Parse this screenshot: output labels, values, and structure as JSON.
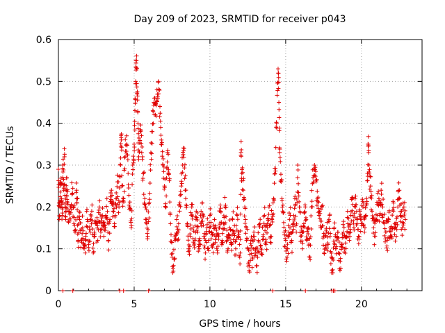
{
  "chart_data": {
    "type": "scatter",
    "title": "Day 209 of 2023, SRMTID for receiver p043",
    "xlabel": "GPS time / hours",
    "ylabel": "SRMTID / TECUs",
    "xlim": [
      0,
      24
    ],
    "ylim": [
      0,
      0.6
    ],
    "x_ticks": [
      0,
      5,
      10,
      15,
      20
    ],
    "x_tick_labels": [
      "0",
      "5",
      "10",
      "15",
      "20"
    ],
    "y_ticks": [
      0,
      0.1,
      0.2,
      0.3,
      0.4,
      0.5,
      0.6
    ],
    "y_tick_labels": [
      "0",
      "0.1",
      "0.2",
      "0.3",
      "0.4",
      "0.5",
      "0.6"
    ],
    "grid": true,
    "marker": "plus",
    "color": "#e00000",
    "series": [
      {
        "name": "SRMTID",
        "points": [
          [
            0.0,
            0.29
          ],
          [
            0.05,
            0.17
          ],
          [
            0.1,
            0.2
          ],
          [
            0.15,
            0.26
          ],
          [
            0.2,
            0.22
          ],
          [
            0.25,
            0.18
          ],
          [
            0.3,
            0.3
          ],
          [
            0.35,
            0.24
          ],
          [
            0.4,
            0.32
          ],
          [
            0.45,
            0.2
          ],
          [
            0.5,
            0.19
          ],
          [
            0.55,
            0.27
          ],
          [
            0.6,
            0.21
          ],
          [
            0.7,
            0.19
          ],
          [
            0.8,
            0.2
          ],
          [
            0.9,
            0.23
          ],
          [
            1.0,
            0.2
          ],
          [
            1.1,
            0.14
          ],
          [
            1.2,
            0.24
          ],
          [
            1.25,
            0.22
          ],
          [
            1.3,
            0.12
          ],
          [
            1.4,
            0.17
          ],
          [
            1.5,
            0.12
          ],
          [
            1.6,
            0.15
          ],
          [
            1.7,
            0.1
          ],
          [
            1.8,
            0.13
          ],
          [
            1.9,
            0.17
          ],
          [
            2.0,
            0.11
          ],
          [
            2.1,
            0.14
          ],
          [
            2.2,
            0.19
          ],
          [
            2.3,
            0.09
          ],
          [
            2.4,
            0.13
          ],
          [
            2.5,
            0.16
          ],
          [
            2.6,
            0.12
          ],
          [
            2.7,
            0.2
          ],
          [
            2.8,
            0.14
          ],
          [
            2.9,
            0.18
          ],
          [
            3.0,
            0.13
          ],
          [
            3.1,
            0.15
          ],
          [
            3.2,
            0.22
          ],
          [
            3.3,
            0.12
          ],
          [
            3.4,
            0.17
          ],
          [
            3.5,
            0.24
          ],
          [
            3.6,
            0.19
          ],
          [
            3.7,
            0.16
          ],
          [
            3.8,
            0.22
          ],
          [
            3.9,
            0.26
          ],
          [
            4.0,
            0.2
          ],
          [
            4.1,
            0.3
          ],
          [
            4.15,
            0.36
          ],
          [
            4.2,
            0.25
          ],
          [
            4.3,
            0.22
          ],
          [
            4.4,
            0.32
          ],
          [
            4.5,
            0.37
          ],
          [
            4.6,
            0.28
          ],
          [
            4.7,
            0.2
          ],
          [
            4.8,
            0.15
          ],
          [
            4.9,
            0.3
          ],
          [
            5.0,
            0.35
          ],
          [
            5.05,
            0.43
          ],
          [
            5.1,
            0.5
          ],
          [
            5.15,
            0.55
          ],
          [
            5.2,
            0.47
          ],
          [
            5.25,
            0.4
          ],
          [
            5.3,
            0.32
          ],
          [
            5.4,
            0.38
          ],
          [
            5.5,
            0.33
          ],
          [
            5.6,
            0.28
          ],
          [
            5.7,
            0.22
          ],
          [
            5.8,
            0.17
          ],
          [
            5.9,
            0.13
          ],
          [
            6.0,
            0.21
          ],
          [
            6.1,
            0.33
          ],
          [
            6.2,
            0.38
          ],
          [
            6.3,
            0.45
          ],
          [
            6.4,
            0.42
          ],
          [
            6.5,
            0.48
          ],
          [
            6.6,
            0.5
          ],
          [
            6.7,
            0.44
          ],
          [
            6.8,
            0.36
          ],
          [
            6.9,
            0.3
          ],
          [
            7.0,
            0.25
          ],
          [
            7.1,
            0.2
          ],
          [
            7.2,
            0.33
          ],
          [
            7.3,
            0.28
          ],
          [
            7.4,
            0.16
          ],
          [
            7.5,
            0.08
          ],
          [
            7.6,
            0.06
          ],
          [
            7.7,
            0.12
          ],
          [
            7.8,
            0.17
          ],
          [
            7.9,
            0.14
          ],
          [
            8.0,
            0.19
          ],
          [
            8.1,
            0.25
          ],
          [
            8.2,
            0.3
          ],
          [
            8.3,
            0.34
          ],
          [
            8.4,
            0.22
          ],
          [
            8.5,
            0.16
          ],
          [
            8.6,
            0.1
          ],
          [
            8.7,
            0.13
          ],
          [
            8.8,
            0.2
          ],
          [
            8.9,
            0.15
          ],
          [
            9.0,
            0.12
          ],
          [
            9.1,
            0.19
          ],
          [
            9.2,
            0.14
          ],
          [
            9.3,
            0.1
          ],
          [
            9.4,
            0.16
          ],
          [
            9.5,
            0.21
          ],
          [
            9.6,
            0.13
          ],
          [
            9.7,
            0.09
          ],
          [
            9.8,
            0.15
          ],
          [
            9.9,
            0.12
          ],
          [
            10.0,
            0.18
          ],
          [
            10.1,
            0.14
          ],
          [
            10.2,
            0.11
          ],
          [
            10.3,
            0.17
          ],
          [
            10.4,
            0.13
          ],
          [
            10.5,
            0.09
          ],
          [
            10.6,
            0.15
          ],
          [
            10.7,
            0.19
          ],
          [
            10.8,
            0.12
          ],
          [
            10.9,
            0.16
          ],
          [
            11.0,
            0.2
          ],
          [
            11.1,
            0.13
          ],
          [
            11.2,
            0.1
          ],
          [
            11.3,
            0.15
          ],
          [
            11.4,
            0.11
          ],
          [
            11.5,
            0.17
          ],
          [
            11.6,
            0.14
          ],
          [
            11.7,
            0.1
          ],
          [
            11.8,
            0.18
          ],
          [
            11.9,
            0.13
          ],
          [
            12.0,
            0.09
          ],
          [
            12.05,
            0.33
          ],
          [
            12.1,
            0.28
          ],
          [
            12.2,
            0.24
          ],
          [
            12.3,
            0.2
          ],
          [
            12.4,
            0.15
          ],
          [
            12.5,
            0.1
          ],
          [
            12.6,
            0.06
          ],
          [
            12.7,
            0.12
          ],
          [
            12.8,
            0.08
          ],
          [
            12.9,
            0.14
          ],
          [
            13.0,
            0.1
          ],
          [
            13.1,
            0.06
          ],
          [
            13.2,
            0.12
          ],
          [
            13.3,
            0.16
          ],
          [
            13.4,
            0.09
          ],
          [
            13.5,
            0.13
          ],
          [
            13.6,
            0.18
          ],
          [
            13.7,
            0.11
          ],
          [
            13.8,
            0.15
          ],
          [
            13.9,
            0.2
          ],
          [
            14.0,
            0.13
          ],
          [
            14.1,
            0.17
          ],
          [
            14.2,
            0.22
          ],
          [
            14.3,
            0.28
          ],
          [
            14.4,
            0.4
          ],
          [
            14.5,
            0.53
          ],
          [
            14.55,
            0.45
          ],
          [
            14.6,
            0.33
          ],
          [
            14.7,
            0.26
          ],
          [
            14.8,
            0.19
          ],
          [
            14.9,
            0.14
          ],
          [
            15.0,
            0.12
          ],
          [
            15.1,
            0.08
          ],
          [
            15.2,
            0.14
          ],
          [
            15.3,
            0.18
          ],
          [
            15.4,
            0.12
          ],
          [
            15.5,
            0.16
          ],
          [
            15.6,
            0.22
          ],
          [
            15.7,
            0.14
          ],
          [
            15.8,
            0.3
          ],
          [
            15.9,
            0.2
          ],
          [
            16.0,
            0.13
          ],
          [
            16.1,
            0.1
          ],
          [
            16.2,
            0.16
          ],
          [
            16.3,
            0.2
          ],
          [
            16.4,
            0.12
          ],
          [
            16.5,
            0.15
          ],
          [
            16.6,
            0.08
          ],
          [
            16.7,
            0.2
          ],
          [
            16.8,
            0.27
          ],
          [
            16.9,
            0.3
          ],
          [
            17.0,
            0.26
          ],
          [
            17.1,
            0.22
          ],
          [
            17.2,
            0.18
          ],
          [
            17.3,
            0.15
          ],
          [
            17.4,
            0.2
          ],
          [
            17.5,
            0.13
          ],
          [
            17.6,
            0.1
          ],
          [
            17.7,
            0.14
          ],
          [
            17.8,
            0.11
          ],
          [
            17.9,
            0.18
          ],
          [
            18.0,
            0.08
          ],
          [
            18.1,
            0.05
          ],
          [
            18.2,
            0.15
          ],
          [
            18.3,
            0.1
          ],
          [
            18.4,
            0.13
          ],
          [
            18.5,
            0.09
          ],
          [
            18.6,
            0.07
          ],
          [
            18.7,
            0.11
          ],
          [
            18.8,
            0.14
          ],
          [
            18.9,
            0.1
          ],
          [
            19.0,
            0.13
          ],
          [
            19.1,
            0.16
          ],
          [
            19.2,
            0.12
          ],
          [
            19.3,
            0.18
          ],
          [
            19.4,
            0.22
          ],
          [
            19.5,
            0.15
          ],
          [
            19.6,
            0.2
          ],
          [
            19.7,
            0.17
          ],
          [
            19.8,
            0.13
          ],
          [
            19.9,
            0.19
          ],
          [
            20.0,
            0.16
          ],
          [
            20.1,
            0.2
          ],
          [
            20.2,
            0.14
          ],
          [
            20.3,
            0.18
          ],
          [
            20.4,
            0.28
          ],
          [
            20.45,
            0.35
          ],
          [
            20.5,
            0.3
          ],
          [
            20.6,
            0.25
          ],
          [
            20.7,
            0.19
          ],
          [
            20.8,
            0.15
          ],
          [
            20.9,
            0.13
          ],
          [
            21.0,
            0.17
          ],
          [
            21.1,
            0.21
          ],
          [
            21.2,
            0.18
          ],
          [
            21.3,
            0.24
          ],
          [
            21.4,
            0.2
          ],
          [
            21.5,
            0.16
          ],
          [
            21.6,
            0.14
          ],
          [
            21.7,
            0.12
          ],
          [
            21.8,
            0.17
          ],
          [
            21.9,
            0.15
          ],
          [
            22.0,
            0.13
          ],
          [
            22.1,
            0.19
          ],
          [
            22.2,
            0.16
          ],
          [
            22.3,
            0.13
          ],
          [
            22.4,
            0.2
          ],
          [
            22.5,
            0.24
          ],
          [
            22.6,
            0.18
          ],
          [
            22.7,
            0.15
          ],
          [
            22.8,
            0.2
          ],
          [
            22.9,
            0.17
          ]
        ]
      }
    ],
    "zero_markers_x": [
      0.3,
      0.95,
      4.05,
      4.3,
      5.95,
      14.15,
      16.3,
      18.05,
      18.15,
      18.25
    ]
  }
}
